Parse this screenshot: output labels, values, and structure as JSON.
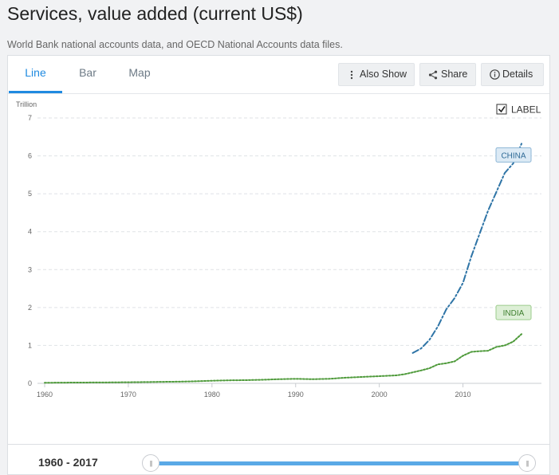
{
  "page": {
    "title": "Services, value added (current US$)",
    "source": "World Bank national accounts data, and OECD National Accounts data files."
  },
  "tabs": [
    {
      "label": "Line",
      "active": true
    },
    {
      "label": "Bar",
      "active": false
    },
    {
      "label": "Map",
      "active": false
    }
  ],
  "toolbar": {
    "also_show": "Also Show",
    "share": "Share",
    "details": "Details"
  },
  "label_toggle": {
    "label": "LABEL",
    "checked": true
  },
  "slider": {
    "range_start": "1960",
    "range_sep": "-",
    "range_end": "2017",
    "handle_glyph": "|||"
  },
  "colors": {
    "accent": "#1f8ae0",
    "china": "#2e74a6",
    "india": "#4e9a3a"
  },
  "chart_data": {
    "type": "line",
    "unit_label": "Trillion",
    "xlim": [
      1960,
      2017
    ],
    "ylim": [
      0,
      7
    ],
    "x_ticks": [
      "1960",
      "1970",
      "1980",
      "1990",
      "2000",
      "2010"
    ],
    "y_ticks": [
      "0",
      "1",
      "2",
      "3",
      "4",
      "5",
      "6",
      "7"
    ],
    "grid": true,
    "series": [
      {
        "name": "CHINA",
        "color": "#2e74a6",
        "dash": "dashdot",
        "x": [
          2004,
          2005,
          2006,
          2007,
          2008,
          2009,
          2010,
          2011,
          2012,
          2013,
          2014,
          2015,
          2016,
          2017
        ],
        "y": [
          0.8,
          0.92,
          1.15,
          1.5,
          1.95,
          2.25,
          2.65,
          3.35,
          3.95,
          4.55,
          5.05,
          5.55,
          5.8,
          6.32
        ]
      },
      {
        "name": "INDIA",
        "color": "#4e9a3a",
        "dash": "dotted",
        "x": [
          1960,
          1962,
          1964,
          1966,
          1968,
          1970,
          1972,
          1974,
          1976,
          1978,
          1980,
          1982,
          1984,
          1986,
          1988,
          1990,
          1992,
          1994,
          1996,
          1998,
          2000,
          2002,
          2003,
          2004,
          2005,
          2006,
          2007,
          2008,
          2009,
          2010,
          2011,
          2012,
          2013,
          2014,
          2015,
          2016,
          2017
        ],
        "y": [
          0.015,
          0.018,
          0.022,
          0.024,
          0.026,
          0.03,
          0.033,
          0.04,
          0.045,
          0.055,
          0.07,
          0.08,
          0.085,
          0.095,
          0.11,
          0.12,
          0.11,
          0.12,
          0.15,
          0.17,
          0.19,
          0.21,
          0.24,
          0.29,
          0.34,
          0.4,
          0.5,
          0.53,
          0.58,
          0.73,
          0.83,
          0.85,
          0.86,
          0.96,
          1.0,
          1.1,
          1.3
        ]
      }
    ]
  }
}
